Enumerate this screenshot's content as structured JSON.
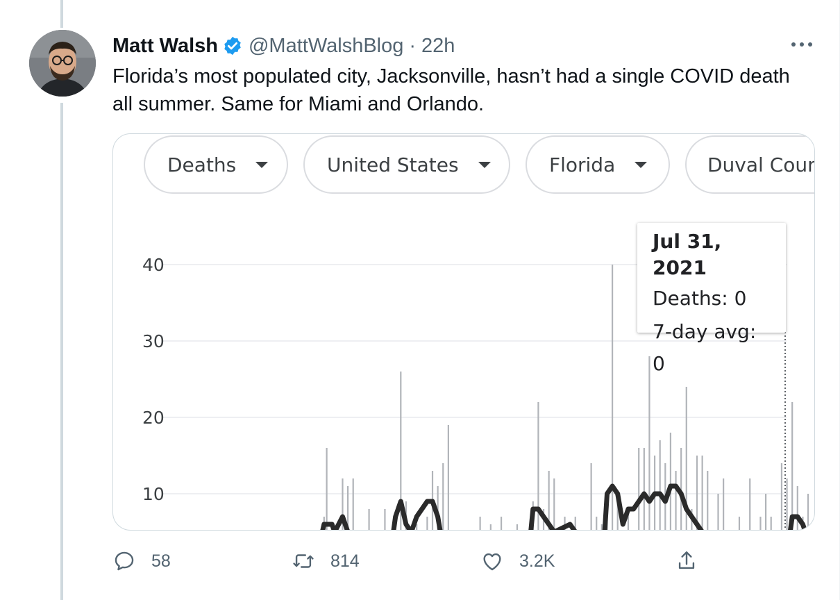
{
  "tweet": {
    "author_name": "Matt Walsh",
    "handle": "@MattWalshBlog",
    "separator": "·",
    "time": "22h",
    "text": "Florida’s most populated city, Jacksonville, hasn’t had a single COVID death all summer. Same for Miami and Orlando.",
    "verified_color": "#1d9bf0"
  },
  "card": {
    "filters": [
      {
        "label": "Deaths"
      },
      {
        "label": "United States"
      },
      {
        "label": "Florida"
      },
      {
        "label": "Duval Coun"
      }
    ],
    "tooltip": {
      "date": "Jul 31, 2021",
      "deaths": "Deaths: 0",
      "avg": "7-day avg: 0"
    }
  },
  "chart_data": {
    "type": "bar",
    "title": "",
    "xlabel": "",
    "ylabel": "",
    "y_ticks": [
      "40",
      "30",
      "20",
      "10"
    ],
    "y_visible_range": [
      5.5,
      43
    ],
    "grid": true,
    "bar_color": "#b1b4b9",
    "avg_color": "#2a2a2a",
    "series": [
      {
        "name": "Deaths",
        "values": [
          [
            0.5,
            7
          ],
          [
            1,
            16
          ],
          [
            4,
            12
          ],
          [
            5,
            11
          ],
          [
            6,
            12
          ],
          [
            9,
            8
          ],
          [
            12,
            8
          ],
          [
            15,
            26
          ],
          [
            16,
            9
          ],
          [
            18,
            6
          ],
          [
            20,
            7
          ],
          [
            21,
            13
          ],
          [
            22,
            11
          ],
          [
            23,
            14
          ],
          [
            24,
            19
          ],
          [
            30,
            7
          ],
          [
            32,
            6
          ],
          [
            34,
            7
          ],
          [
            37,
            6
          ],
          [
            40,
            9
          ],
          [
            41,
            22
          ],
          [
            42,
            8
          ],
          [
            43,
            13
          ],
          [
            44,
            12
          ],
          [
            46,
            7
          ],
          [
            48,
            7
          ],
          [
            51,
            14
          ],
          [
            52,
            7
          ],
          [
            53,
            6
          ],
          [
            54,
            8
          ],
          [
            55,
            40
          ],
          [
            56,
            9
          ],
          [
            58,
            8
          ],
          [
            60,
            16
          ],
          [
            61,
            16
          ],
          [
            62,
            28
          ],
          [
            63,
            15
          ],
          [
            64,
            17
          ],
          [
            65,
            14
          ],
          [
            66,
            18
          ],
          [
            67,
            13
          ],
          [
            68,
            16
          ],
          [
            69,
            24
          ],
          [
            70,
            8
          ],
          [
            71,
            15
          ],
          [
            72,
            15
          ],
          [
            73,
            13
          ],
          [
            75,
            10
          ],
          [
            76,
            12
          ],
          [
            79,
            7
          ],
          [
            81,
            12
          ],
          [
            83,
            7
          ],
          [
            84,
            10
          ],
          [
            85,
            7
          ],
          [
            87,
            14
          ],
          [
            88,
            12
          ],
          [
            89,
            22
          ],
          [
            90,
            11
          ],
          [
            91,
            7
          ],
          [
            92,
            10
          ]
        ]
      },
      {
        "name": "7-day avg",
        "values": [
          [
            0.5,
            6
          ],
          [
            1,
            6
          ],
          [
            2,
            6
          ],
          [
            2.5,
            5
          ],
          [
            4,
            7
          ],
          [
            5,
            5
          ],
          [
            14,
            7
          ],
          [
            15,
            9
          ],
          [
            16,
            6
          ],
          [
            17,
            5
          ],
          [
            18,
            7
          ],
          [
            19,
            8
          ],
          [
            20,
            9
          ],
          [
            21,
            9
          ],
          [
            22,
            7
          ],
          [
            22.5,
            5
          ],
          [
            40,
            8
          ],
          [
            41,
            8
          ],
          [
            42,
            7
          ],
          [
            43,
            6
          ],
          [
            44,
            5
          ],
          [
            47,
            6
          ],
          [
            48,
            5
          ],
          [
            54,
            10
          ],
          [
            55,
            11
          ],
          [
            56,
            10
          ],
          [
            57,
            6
          ],
          [
            58,
            8
          ],
          [
            59,
            8
          ],
          [
            60,
            9
          ],
          [
            61,
            10
          ],
          [
            62,
            9
          ],
          [
            63,
            10
          ],
          [
            64,
            10
          ],
          [
            65,
            9
          ],
          [
            66,
            11
          ],
          [
            67,
            11
          ],
          [
            68,
            10
          ],
          [
            69,
            8
          ],
          [
            70,
            7
          ],
          [
            71,
            6
          ],
          [
            72,
            5
          ],
          [
            89,
            7
          ],
          [
            90,
            7
          ],
          [
            91,
            6
          ],
          [
            91.5,
            5
          ]
        ]
      }
    ],
    "selected_marker": "Jul 31, 2021"
  },
  "actions": {
    "reply_count": "58",
    "retweet_count": "814",
    "like_count": "3.2K"
  }
}
